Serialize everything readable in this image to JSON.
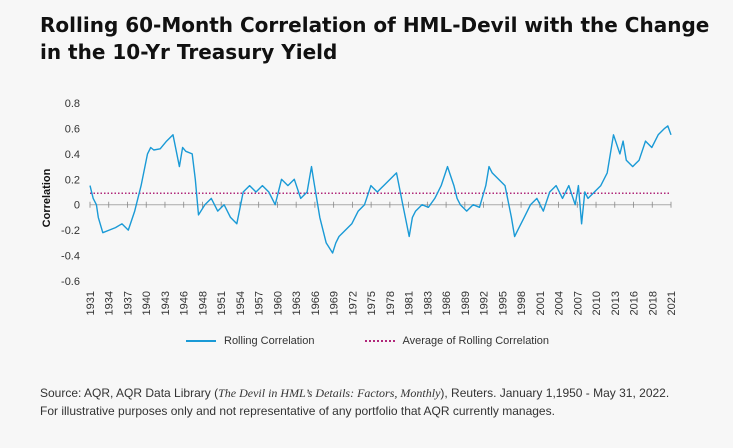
{
  "title": "Rolling 60-Month Correlation of HML-Devil with the Change in the 10-Yr Treasury Yield",
  "legend": {
    "series": "Rolling Correlation",
    "average": "Average of Rolling Correlation"
  },
  "source": {
    "prefix": "Source: AQR, AQR Data Library (",
    "italic": "The Devil in HML’s Details: Factors, Monthly",
    "suffix": "), Reuters. January 1,1950 - May 31, 2022. For illustrative purposes only and not representative of any portfolio that AQR currently manages."
  },
  "colors": {
    "series": "#1a9ad6",
    "average": "#b0287a",
    "axis": "#888888"
  },
  "chart_data": {
    "type": "line",
    "title": "Rolling 60-Month Correlation of HML-Devil with the Change in the 10-Yr Treasury Yield",
    "xlabel": "",
    "ylabel": "Correlation",
    "ylim": [
      -0.6,
      0.8
    ],
    "yticks": [
      0.8,
      0.6,
      0.4,
      0.2,
      0,
      -0.2,
      -0.4,
      -0.6
    ],
    "xlim": [
      1931,
      2022
    ],
    "xticks": [
      1931,
      1934,
      1937,
      1940,
      1943,
      1946,
      1948,
      1951,
      1954,
      1957,
      1960,
      1963,
      1966,
      1969,
      1972,
      1975,
      1978,
      1981,
      1983,
      1986,
      1989,
      1992,
      1995,
      1998,
      2001,
      2004,
      2007,
      2010,
      2013,
      2016,
      2018,
      2021
    ],
    "average": 0.09,
    "series": [
      {
        "name": "Rolling Correlation",
        "x": [
          1931,
          1931.5,
          1932,
          1932.3,
          1933,
          1934,
          1935,
          1936,
          1937,
          1938,
          1939,
          1940,
          1940.5,
          1941,
          1942,
          1943,
          1944,
          1945,
          1945.5,
          1946,
          1947,
          1947.5,
          1948,
          1949,
          1950,
          1951,
          1952,
          1953,
          1954,
          1955,
          1956,
          1957,
          1958,
          1959,
          1960,
          1961,
          1962,
          1963,
          1964,
          1965,
          1965.7,
          1966,
          1967,
          1968,
          1969,
          1969.5,
          1970,
          1971,
          1972,
          1973,
          1974,
          1975,
          1976,
          1977,
          1978,
          1979,
          1980,
          1981,
          1981.5,
          1982,
          1983,
          1984,
          1985,
          1986,
          1987,
          1988,
          1988.5,
          1989,
          1990,
          1991,
          1992,
          1993,
          1993.5,
          1994,
          1995,
          1996,
          1997,
          1997.5,
          1998,
          1999,
          2000,
          2001,
          2002,
          2003,
          2004,
          2005,
          2006,
          2007,
          2007.5,
          2008,
          2008.5,
          2009,
          2010,
          2011,
          2012,
          2013,
          2014,
          2014.5,
          2015,
          2016,
          2017,
          2018,
          2019,
          2020,
          2021,
          2021.5,
          2022
        ],
        "values": [
          0.15,
          0.05,
          0.0,
          -0.1,
          -0.22,
          -0.2,
          -0.18,
          -0.15,
          -0.2,
          -0.05,
          0.15,
          0.4,
          0.45,
          0.43,
          0.44,
          0.5,
          0.55,
          0.3,
          0.45,
          0.42,
          0.4,
          0.2,
          -0.08,
          0.0,
          0.05,
          -0.05,
          0.0,
          -0.1,
          -0.15,
          0.1,
          0.15,
          0.1,
          0.15,
          0.1,
          0.0,
          0.2,
          0.15,
          0.2,
          0.05,
          0.1,
          0.3,
          0.2,
          -0.1,
          -0.3,
          -0.38,
          -0.3,
          -0.25,
          -0.2,
          -0.15,
          -0.05,
          0.0,
          0.15,
          0.1,
          0.15,
          0.2,
          0.25,
          0.0,
          -0.25,
          -0.1,
          -0.05,
          0.0,
          -0.02,
          0.05,
          0.15,
          0.3,
          0.15,
          0.05,
          0.0,
          -0.05,
          0.0,
          -0.02,
          0.15,
          0.3,
          0.25,
          0.2,
          0.15,
          -0.1,
          -0.25,
          -0.2,
          -0.1,
          0.0,
          0.05,
          -0.05,
          0.1,
          0.15,
          0.05,
          0.15,
          0.0,
          0.15,
          -0.15,
          0.1,
          0.05,
          0.1,
          0.15,
          0.25,
          0.55,
          0.4,
          0.5,
          0.35,
          0.3,
          0.35,
          0.5,
          0.45,
          0.55,
          0.6,
          0.62,
          0.55
        ]
      }
    ]
  }
}
